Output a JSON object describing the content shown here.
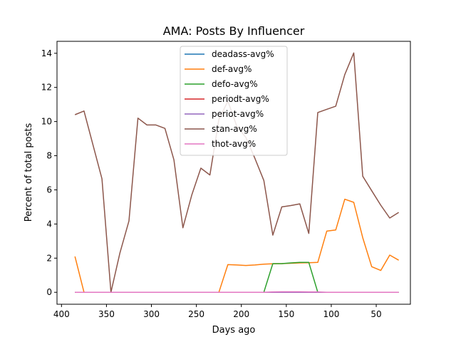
{
  "chart_data": {
    "type": "line",
    "title": "AMA: Posts By Influencer",
    "xlabel": "Days ago",
    "ylabel": "Percent of total posts",
    "xlim": [
      405,
      12
    ],
    "ylim": [
      -0.7,
      14.7
    ],
    "x_inverted": true,
    "grid": false,
    "legend_position": "upper-center",
    "x_ticks": [
      400,
      350,
      300,
      250,
      200,
      150,
      100,
      50
    ],
    "y_ticks": [
      0,
      2,
      4,
      6,
      8,
      10,
      12,
      14
    ],
    "x": [
      385,
      375,
      355,
      345,
      335,
      325,
      315,
      305,
      295,
      285,
      275,
      265,
      255,
      245,
      235,
      225,
      215,
      205,
      195,
      185,
      175,
      165,
      155,
      145,
      135,
      125,
      115,
      105,
      95,
      85,
      75,
      65,
      55,
      45,
      35,
      25
    ],
    "series": [
      {
        "name": "deadass-avg%",
        "color": "#1f77b4",
        "values": [
          0,
          0,
          0,
          0,
          0,
          0,
          0,
          0,
          0,
          0,
          0,
          0,
          0,
          0,
          0,
          0,
          0,
          0,
          0,
          0,
          0,
          0,
          0,
          0,
          0,
          0,
          0,
          0,
          0,
          0,
          0,
          0,
          0,
          0,
          0,
          0
        ]
      },
      {
        "name": "def-avg%",
        "color": "#ff7f0e",
        "values": [
          2.1,
          0,
          0,
          0,
          0,
          0,
          0,
          0,
          0,
          0,
          0,
          0,
          0,
          0,
          0,
          0,
          1.62,
          1.6,
          1.57,
          1.6,
          1.65,
          1.67,
          1.68,
          1.7,
          1.72,
          1.73,
          1.75,
          3.58,
          3.65,
          5.45,
          5.27,
          3.2,
          1.5,
          1.28,
          2.18,
          1.88
        ]
      },
      {
        "name": "defo-avg%",
        "color": "#2ca02c",
        "values": [
          0,
          0,
          0,
          0,
          0,
          0,
          0,
          0,
          0,
          0,
          0,
          0,
          0,
          0,
          0,
          0,
          0,
          0,
          0,
          0,
          0,
          1.68,
          1.68,
          1.72,
          1.75,
          1.75,
          0,
          0,
          0,
          0,
          0,
          0,
          0,
          0,
          0,
          0
        ]
      },
      {
        "name": "periodt-avg%",
        "color": "#d62728",
        "values": [
          0,
          0,
          0,
          0,
          0,
          0,
          0,
          0,
          0,
          0,
          0,
          0,
          0,
          0,
          0,
          0,
          0,
          0,
          0,
          0,
          0,
          0,
          0,
          0,
          0,
          0,
          0,
          0,
          0,
          0,
          0,
          0,
          0,
          0,
          0,
          0
        ]
      },
      {
        "name": "periot-avg%",
        "color": "#9467bd",
        "values": [
          0,
          0,
          0,
          0,
          0,
          0,
          0,
          0,
          0,
          0,
          0,
          0,
          0,
          0,
          0,
          0,
          0,
          0,
          0,
          0,
          0,
          0,
          0,
          0,
          0,
          0,
          0,
          0,
          0,
          0,
          0,
          0,
          0,
          0,
          0,
          0
        ]
      },
      {
        "name": "stan-avg%",
        "color": "#8c564b",
        "values": [
          10.4,
          10.62,
          6.65,
          0,
          2.3,
          4.18,
          10.2,
          9.8,
          9.8,
          9.6,
          7.76,
          3.78,
          5.72,
          7.27,
          6.87,
          10.12,
          11.2,
          9.72,
          9.08,
          7.85,
          6.55,
          3.35,
          5.0,
          5.08,
          5.18,
          3.45,
          10.53,
          10.72,
          10.9,
          12.75,
          14.02,
          6.8,
          5.95,
          5.1,
          4.35,
          4.68
        ]
      },
      {
        "name": "thot-avg%",
        "color": "#e377c2",
        "values": [
          0,
          0,
          0,
          0,
          0,
          0,
          0,
          0,
          0,
          0,
          0,
          0,
          0,
          0,
          0,
          0,
          0,
          0,
          0,
          0,
          0,
          0.02,
          0.03,
          0.03,
          0.03,
          0.02,
          0.02,
          0,
          0,
          0,
          0,
          0,
          0,
          0,
          0,
          0
        ]
      }
    ]
  }
}
